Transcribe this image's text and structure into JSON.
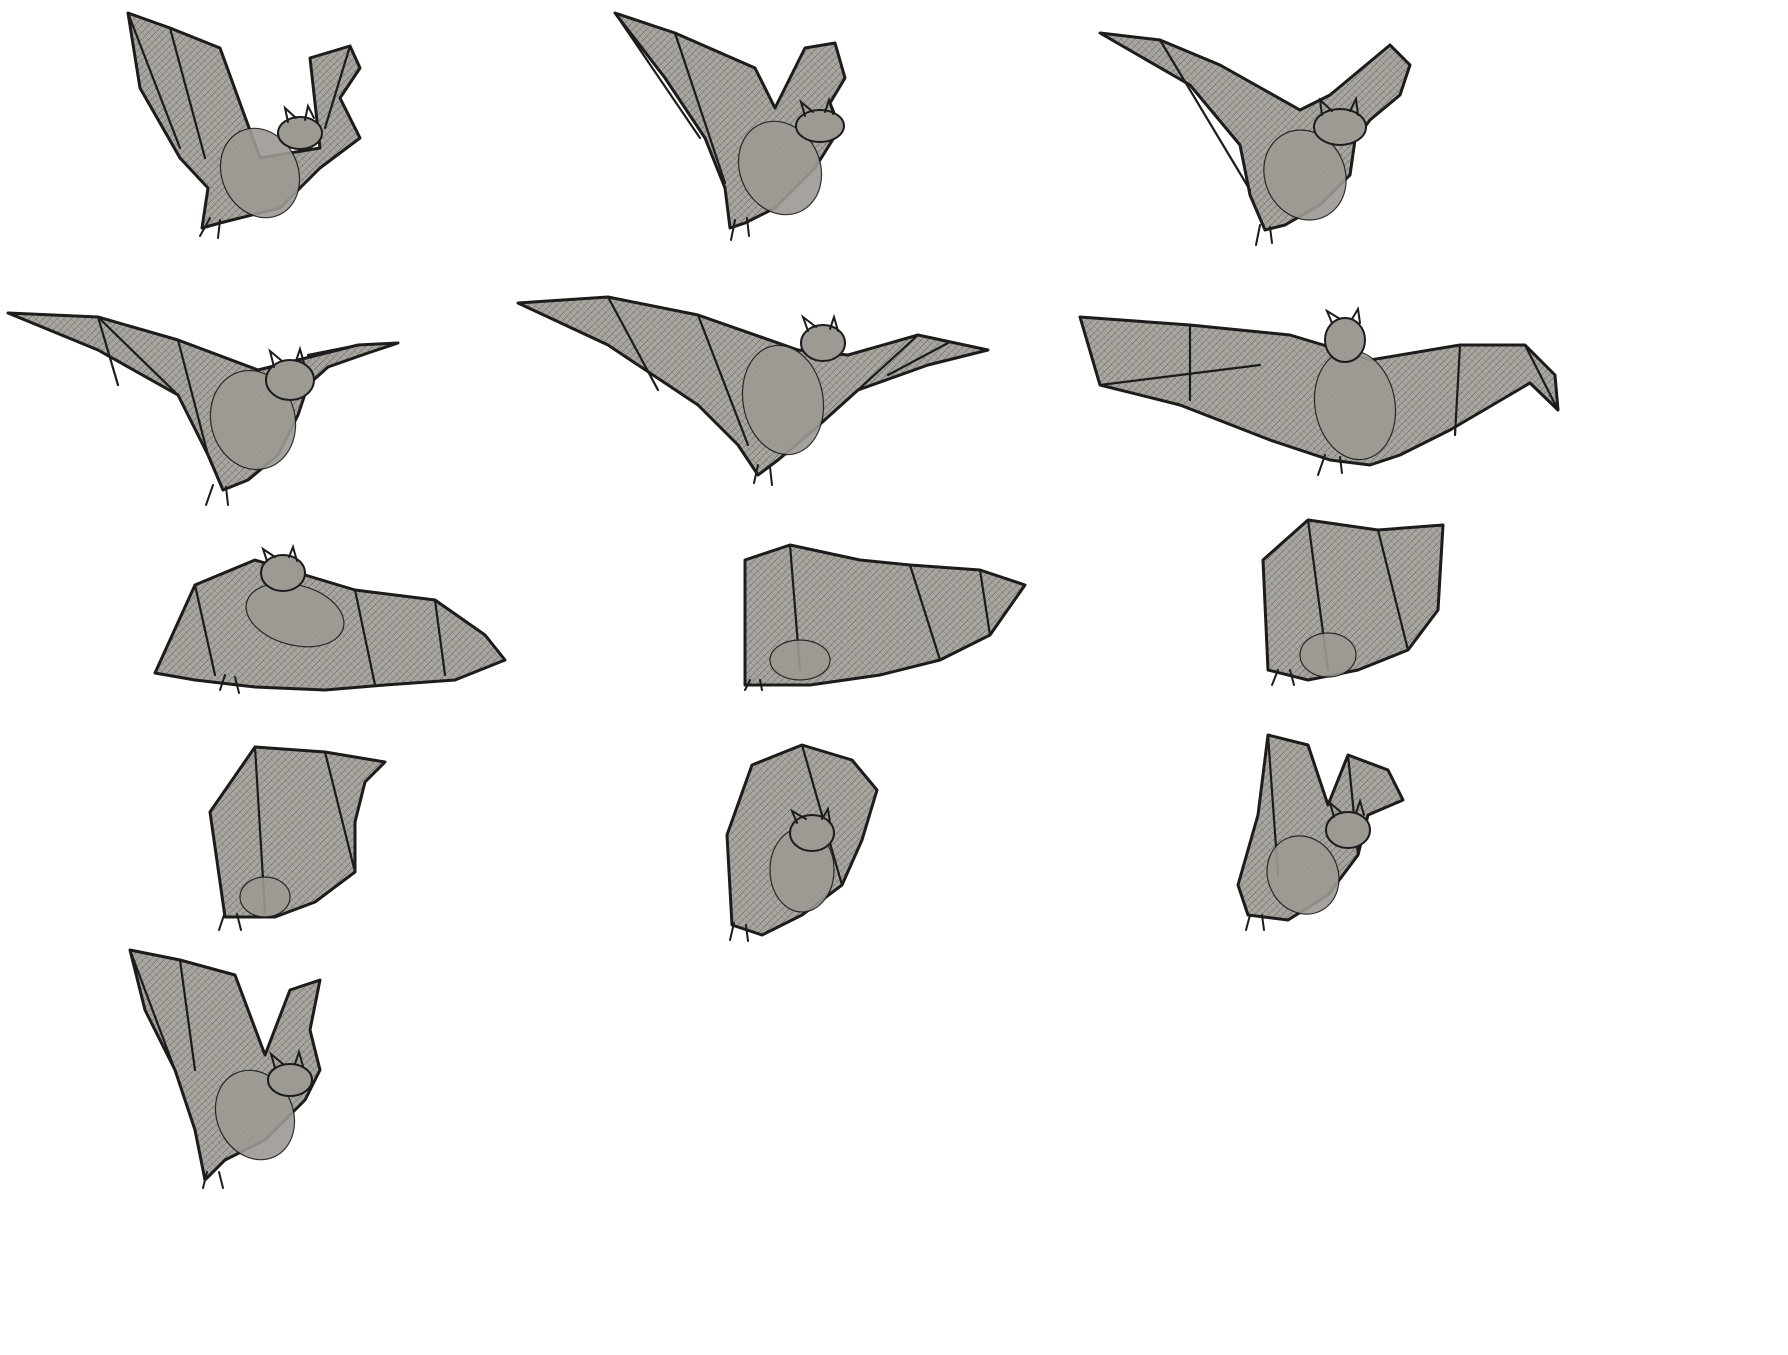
{
  "palette": {
    "background": "#ffffff",
    "membrane": "#a9a6a0",
    "outline": "#1c1c1c",
    "hatch": "#3a3a3a",
    "body": "#9d9a94"
  },
  "frames": [
    {
      "pose": "upstroke-peak"
    },
    {
      "pose": "early-downstroke"
    },
    {
      "pose": "downstroke"
    },
    {
      "pose": "mid-downstroke"
    },
    {
      "pose": "wings-extended"
    },
    {
      "pose": "full-extension"
    },
    {
      "pose": "wings-lowered"
    },
    {
      "pose": "end-downstroke"
    },
    {
      "pose": "wing-fold-start"
    },
    {
      "pose": "early-upstroke"
    },
    {
      "pose": "mid-upstroke"
    },
    {
      "pose": "late-upstroke"
    },
    {
      "pose": "upstroke-peak-repeat"
    }
  ]
}
